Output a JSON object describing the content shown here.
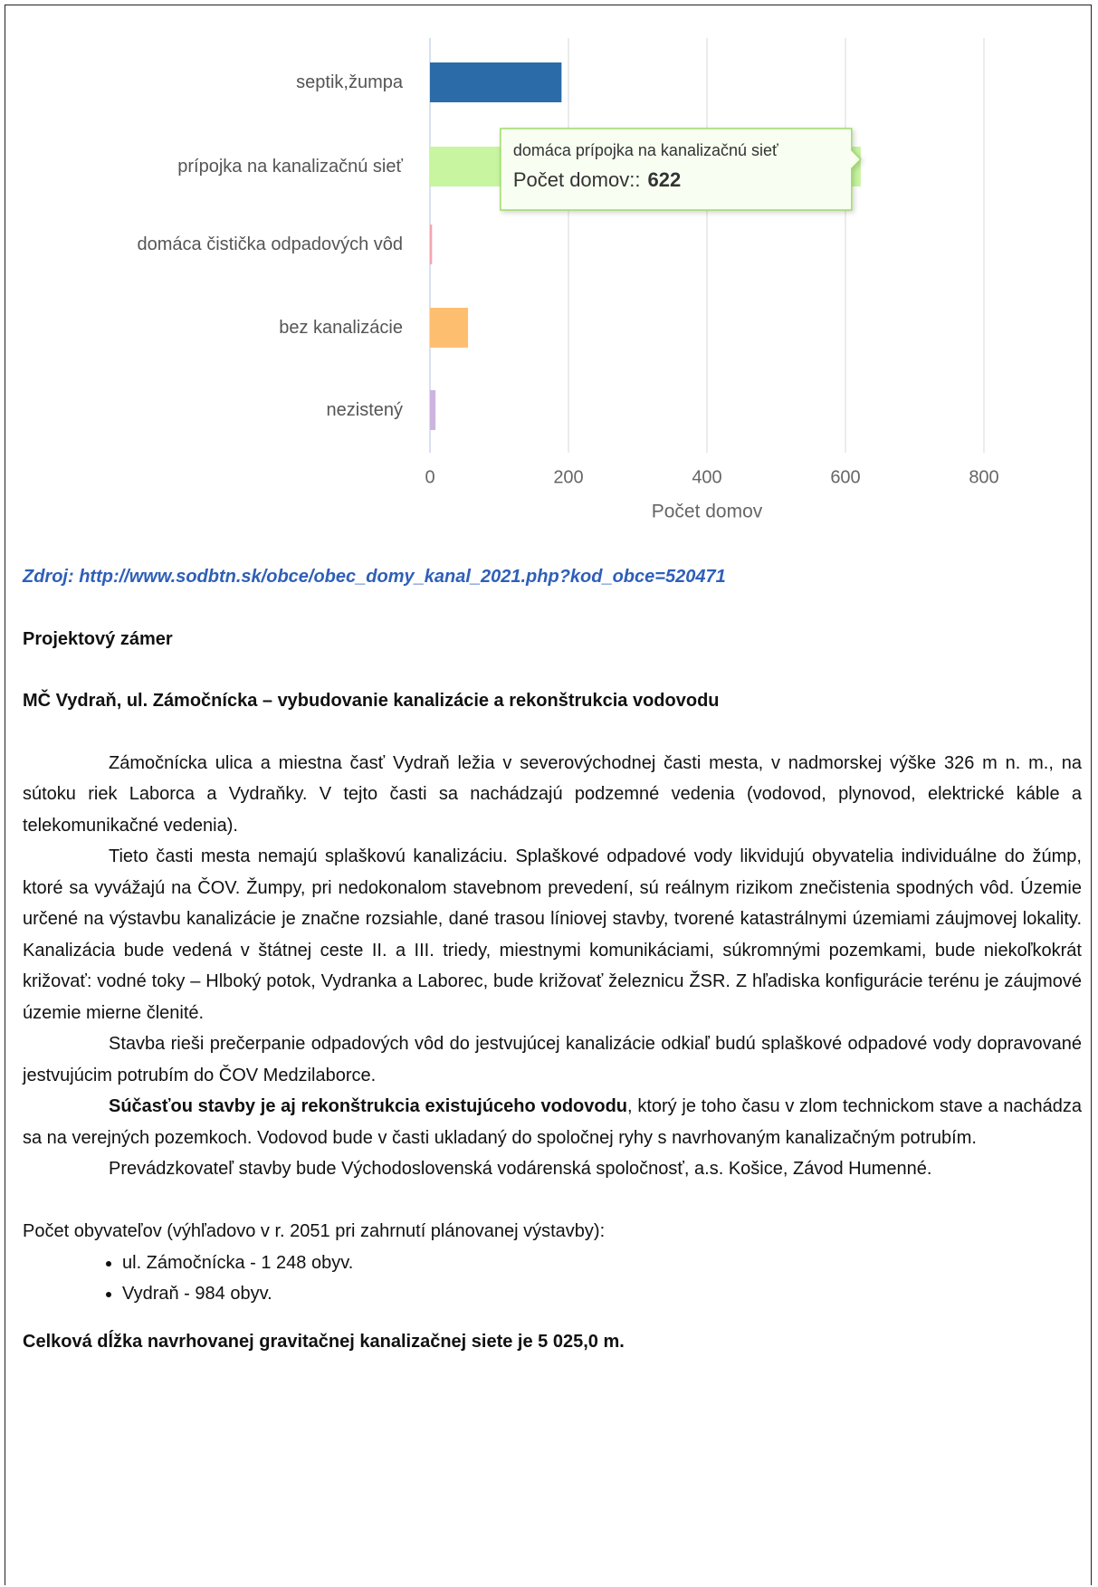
{
  "chart_data": {
    "type": "bar",
    "orientation": "horizontal",
    "categories": [
      "septik,žumpa",
      "prípojka na kanalizačnú sieť",
      "domáca čistička odpadových vôd",
      "bez kanalizácie",
      "nezistený"
    ],
    "values": [
      190,
      622,
      3,
      55,
      8
    ],
    "colors": [
      "#2b6ca8",
      "#c8f5a0",
      "#f4a6b0",
      "#fdbf6f",
      "#cdb4e0"
    ],
    "xlim": [
      0,
      800
    ],
    "xticks": [
      0,
      200,
      400,
      600,
      800
    ],
    "xlabel": "Počet domov",
    "grid": true,
    "tooltip": {
      "index": 1,
      "title": "domáca prípojka na kanalizačnú sieť",
      "label": "Počet domov::"
    }
  },
  "source": "Zdroj: http://www.sodbtn.sk/obce/obec_domy_kanal_2021.php?kod_obce=520471",
  "heading": "Projektový zámer",
  "subheading": "MČ Vydraň, ul. Zámočnícka – vybudovanie kanalizácie  a rekonštrukcia vodovodu",
  "paragraphs": [
    {
      "text": "Zámočnícka ulica a miestna časť Vydraň ležia v severovýchodnej časti mesta, v nadmorskej výške 326 m n. m., na sútoku riek Laborca a Vydraňky. V tejto časti sa nachádzajú podzemné vedenia (vodovod, plynovod, elektrické káble a telekomunikačné vedenia)."
    },
    {
      "text": "Tieto časti mesta nemajú splaškovú kanalizáciu. Splaškové odpadové vody likvidujú obyvatelia individuálne do žúmp, ktoré sa vyvážajú na ČOV. Žumpy, pri nedokonalom stavebnom prevedení, sú reálnym rizikom znečistenia spodných vôd. Územie určené na výstavbu kanalizácie je značne rozsiahle, dané trasou líniovej stavby, tvorené katastrálnymi územiami záujmovej lokality. Kanalizácia bude vedená v štátnej ceste II. a III. triedy, miestnymi komunikáciami, súkromnými pozemkami, bude niekoľkokrát križovať: vodné toky – Hlboký potok, Vydranka a Laborec, bude križovať železnicu ŽSR. Z hľadiska konfigurácie terénu je záujmové územie mierne členité."
    },
    {
      "text": "Stavba rieši prečerpanie odpadových vôd do jestvujúcej kanalizácie odkiaľ budú splaškové odpadové vody dopravované jestvujúcim potrubím do ČOV Medzilaborce."
    },
    {
      "bold": "Súčasťou stavby je aj rekonštrukcia existujúceho vodovodu",
      "text": ", ktorý je toho času v zlom technickom stave a nachádza sa na verejných pozemkoch. Vodovod bude v časti ukladaný do spoločnej ryhy s navrhovaným kanalizačným potrubím."
    },
    {
      "text": "Prevádzkovateľ stavby bude Východoslovenská vodárenská spoločnosť, a.s. Košice, Závod Humenné."
    }
  ],
  "population_intro": "Počet obyvateľov (výhľadovo v r. 2051 pri zahrnutí plánovanej výstavby):",
  "population_items": [
    "ul. Zámočnícka - 1 248 obyv.",
    "Vydraň - 984 obyv."
  ],
  "total": "Celková dĺžka navrhovanej gravitačnej kanalizačnej siete je 5 025,0 m."
}
